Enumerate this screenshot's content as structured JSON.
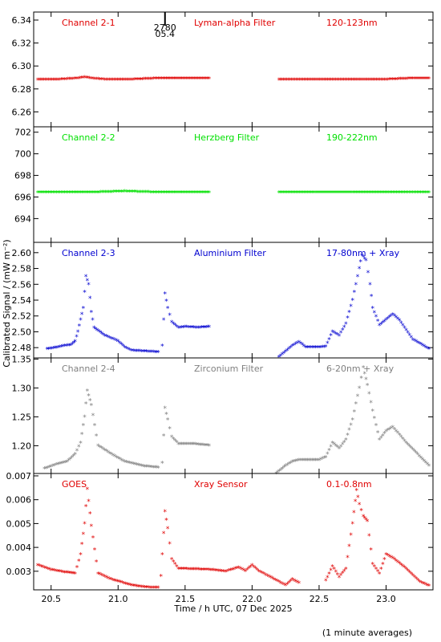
{
  "xaxis": {
    "label": "Time / h UTC, 07 Dec 2025",
    "range": [
      20.37,
      23.35
    ],
    "ticks": [
      20.5,
      21.0,
      21.5,
      22.0,
      22.5,
      23.0
    ],
    "tick_labels": [
      "20.5",
      "21.0",
      "21.5",
      "22.0",
      "22.5",
      "23.0"
    ]
  },
  "yaxis_label": "Calibrated Signal / (mW m⁻²)",
  "footnote": "(1 minute averages)",
  "marker": {
    "x": 21.35,
    "labels": [
      "2780",
      "05.4"
    ]
  },
  "chart_data": [
    {
      "type": "scatter",
      "channel": "Channel 2-1",
      "filter": "Lyman-alpha Filter",
      "band": "120-123nm",
      "color": "#e00000",
      "ylim": [
        6.247,
        6.347
      ],
      "yticks": [
        6.26,
        6.28,
        6.3,
        6.32,
        6.34
      ],
      "ytick_labels": [
        "6.26",
        "6.28",
        "6.30",
        "6.32",
        "6.34"
      ],
      "segments": [
        {
          "x": [
            20.4,
            20.55,
            20.7,
            20.75,
            20.8,
            20.9,
            21.1,
            21.3,
            21.5,
            21.68
          ],
          "y": [
            6.288,
            6.288,
            6.289,
            6.29,
            6.289,
            6.288,
            6.288,
            6.289,
            6.289,
            6.289
          ]
        },
        {
          "x": [
            22.2,
            22.4,
            22.6,
            22.8,
            23.0,
            23.2,
            23.32
          ],
          "y": [
            6.288,
            6.288,
            6.288,
            6.288,
            6.288,
            6.289,
            6.289
          ]
        }
      ]
    },
    {
      "type": "scatter",
      "channel": "Channel 2-2",
      "filter": "Herzberg Filter",
      "band": "190-222nm",
      "color": "#00e000",
      "ylim": [
        691.8,
        702.5
      ],
      "yticks": [
        694,
        696,
        698,
        700,
        702
      ],
      "ytick_labels": [
        "694",
        "696",
        "698",
        "700",
        "702"
      ],
      "segments": [
        {
          "x": [
            20.4,
            20.6,
            20.8,
            21.05,
            21.3,
            21.5,
            21.68
          ],
          "y": [
            696.4,
            696.4,
            696.4,
            696.5,
            696.4,
            696.4,
            696.4
          ]
        },
        {
          "x": [
            22.2,
            22.5,
            22.8,
            23.1,
            23.32
          ],
          "y": [
            696.4,
            696.4,
            696.4,
            696.4,
            696.4
          ]
        }
      ]
    },
    {
      "type": "scatter",
      "channel": "Channel 2-3",
      "filter": "Aluminium Filter",
      "band": "17-80nm + Xray",
      "color": "#0000d0",
      "ylim": [
        2.467,
        2.613
      ],
      "yticks": [
        2.48,
        2.5,
        2.52,
        2.54,
        2.56,
        2.58,
        2.6
      ],
      "ytick_labels": [
        "2.48",
        "2.50",
        "2.52",
        "2.54",
        "2.56",
        "2.58",
        "2.60"
      ],
      "segments": [
        {
          "x": [
            20.47,
            20.55,
            20.6,
            20.65,
            20.68,
            20.7,
            20.72,
            20.74,
            20.76,
            20.78,
            20.8,
            20.82,
            20.9,
            21.0,
            21.05,
            21.1,
            21.2,
            21.3
          ],
          "y": [
            2.478,
            2.48,
            2.482,
            2.483,
            2.488,
            2.5,
            2.515,
            2.53,
            2.57,
            2.56,
            2.525,
            2.505,
            2.495,
            2.488,
            2.48,
            2.476,
            2.475,
            2.474
          ]
        },
        {
          "x": [
            21.33,
            21.35,
            21.37,
            21.4,
            21.45,
            21.5,
            21.6,
            21.68
          ],
          "y": [
            2.482,
            2.548,
            2.53,
            2.512,
            2.505,
            2.506,
            2.505,
            2.506
          ]
        },
        {
          "x": [
            22.2,
            22.25,
            22.3,
            22.35,
            22.4,
            22.5,
            22.55,
            22.6,
            22.65,
            22.7,
            22.75,
            22.8,
            22.82,
            22.85,
            22.88,
            22.9,
            22.95,
            23.0,
            23.05,
            23.1,
            23.2,
            23.32
          ],
          "y": [
            2.468,
            2.475,
            2.482,
            2.487,
            2.48,
            2.48,
            2.481,
            2.5,
            2.495,
            2.51,
            2.54,
            2.58,
            2.597,
            2.59,
            2.56,
            2.53,
            2.508,
            2.515,
            2.522,
            2.514,
            2.49,
            2.478
          ]
        }
      ]
    },
    {
      "type": "scatter",
      "channel": "Channel 2-4",
      "filter": "Zirconium Filter",
      "band": "6-20nm + Xray",
      "color": "#808080",
      "ylim": [
        1.152,
        1.352
      ],
      "yticks": [
        1.2,
        1.25,
        1.3,
        1.35
      ],
      "ytick_labels": [
        "1.20",
        "1.25",
        "1.30",
        "1.35"
      ],
      "segments": [
        {
          "x": [
            20.45,
            20.55,
            20.62,
            20.68,
            20.72,
            20.75,
            20.77,
            20.8,
            20.85,
            20.95,
            21.05,
            21.2,
            21.3
          ],
          "y": [
            1.16,
            1.168,
            1.172,
            1.185,
            1.205,
            1.25,
            1.295,
            1.27,
            1.2,
            1.185,
            1.172,
            1.164,
            1.162
          ]
        },
        {
          "x": [
            21.33,
            21.35,
            21.37,
            21.4,
            21.45,
            21.55,
            21.68
          ],
          "y": [
            1.17,
            1.265,
            1.245,
            1.215,
            1.203,
            1.203,
            1.2
          ]
        },
        {
          "x": [
            22.18,
            22.25,
            22.3,
            22.35,
            22.5,
            22.55,
            22.6,
            22.65,
            22.7,
            22.75,
            22.8,
            22.83,
            22.86,
            22.9,
            22.95,
            23.0,
            23.05,
            23.15,
            23.32
          ],
          "y": [
            1.152,
            1.165,
            1.172,
            1.175,
            1.175,
            1.18,
            1.205,
            1.195,
            1.21,
            1.245,
            1.3,
            1.335,
            1.305,
            1.26,
            1.21,
            1.225,
            1.232,
            1.205,
            1.165
          ]
        }
      ]
    },
    {
      "type": "scatter",
      "channel": "GOES",
      "filter": "Xray Sensor",
      "band": "0.1-0.8nm",
      "color": "#e00000",
      "ylim": [
        0.00222,
        0.0071
      ],
      "yticks": [
        0.003,
        0.004,
        0.005,
        0.006,
        0.007
      ],
      "ytick_labels": [
        "0.003",
        "0.004",
        "0.005",
        "0.006",
        "0.007"
      ],
      "segments": [
        {
          "x": [
            20.4,
            20.5,
            20.6,
            20.68,
            20.72,
            20.75,
            20.77,
            20.8,
            20.85,
            20.95,
            21.1,
            21.2,
            21.3
          ],
          "y": [
            0.00325,
            0.00305,
            0.00295,
            0.0029,
            0.0037,
            0.005,
            0.00645,
            0.0049,
            0.0029,
            0.00265,
            0.0024,
            0.00232,
            0.0023
          ]
        },
        {
          "x": [
            21.32,
            21.35,
            21.37,
            21.4,
            21.45,
            21.55,
            21.7,
            21.8,
            21.9,
            21.95,
            22.0,
            22.05,
            22.15,
            22.25,
            22.3,
            22.35
          ],
          "y": [
            0.0028,
            0.0055,
            0.0048,
            0.0035,
            0.0031,
            0.00308,
            0.00305,
            0.00298,
            0.00315,
            0.003,
            0.00325,
            0.003,
            0.0027,
            0.0024,
            0.00265,
            0.0025
          ]
        },
        {
          "x": [
            22.55,
            22.6,
            22.65,
            22.7,
            22.75,
            22.78,
            22.8,
            22.83,
            22.86,
            22.9,
            22.95,
            23.0,
            23.05,
            23.15,
            23.25,
            23.32
          ],
          "y": [
            0.0026,
            0.0032,
            0.00275,
            0.0031,
            0.005,
            0.0064,
            0.0058,
            0.0053,
            0.0051,
            0.0033,
            0.0029,
            0.0037,
            0.00355,
            0.0031,
            0.00255,
            0.00238
          ]
        }
      ]
    }
  ]
}
